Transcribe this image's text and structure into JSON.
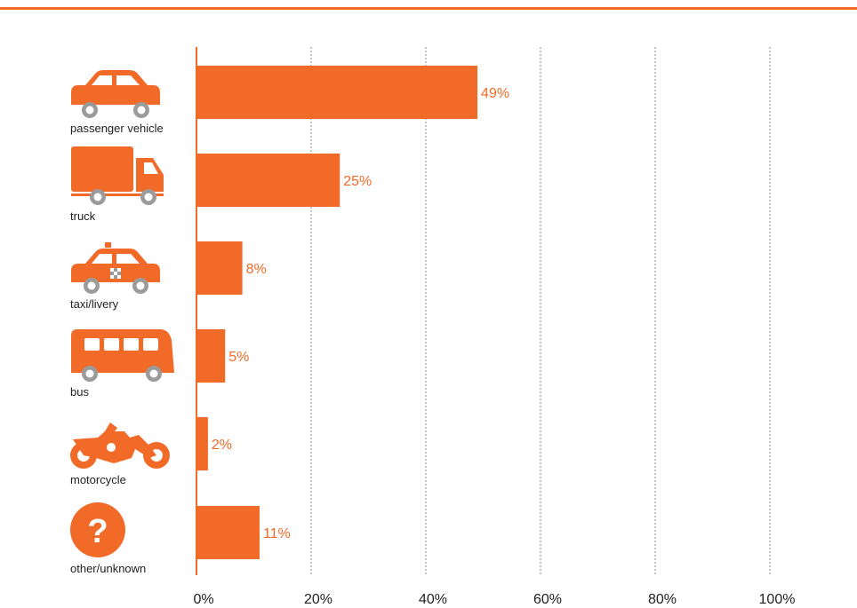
{
  "colors": {
    "accent": "#f26a27",
    "wheel": "#9b9b9b",
    "grid": "#9b9b9b",
    "text": "#222222"
  },
  "chart_data": {
    "type": "bar",
    "orientation": "horizontal",
    "categories": [
      "passenger vehicle",
      "truck",
      "taxi/livery",
      "bus",
      "motorcycle",
      "other/unknown"
    ],
    "icons": [
      "car-icon",
      "truck-icon",
      "taxi-icon",
      "bus-icon",
      "motorcycle-icon",
      "question-icon"
    ],
    "values": [
      49,
      25,
      8,
      5,
      2,
      11
    ],
    "value_labels": [
      "49%",
      "25%",
      "8%",
      "5%",
      "2%",
      "11%"
    ],
    "xticks": [
      0,
      20,
      40,
      60,
      80,
      100
    ],
    "xtick_labels": [
      "0%",
      "20%",
      "40%",
      "60%",
      "80%",
      "100%"
    ],
    "xlim": [
      0,
      100
    ],
    "grid": "vertical dotted",
    "legend": "none"
  }
}
